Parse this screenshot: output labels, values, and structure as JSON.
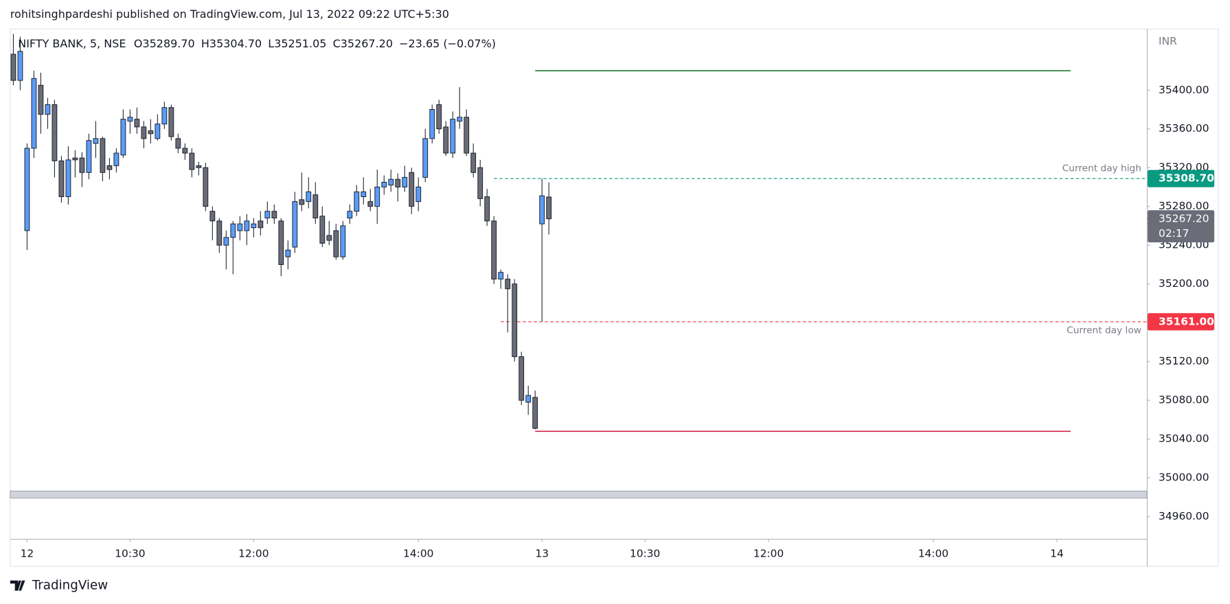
{
  "header": {
    "byline": "rohitsinghpardeshi published on TradingView.com, Jul 13, 2022 09:22 UTC+5:30"
  },
  "footer": {
    "brand": "TradingView"
  },
  "chart_data": {
    "type": "candlestick",
    "legend": {
      "symbol": "NIFTY BANK, 5, NSE",
      "items": [
        {
          "key": "O",
          "value": "35289.70"
        },
        {
          "key": "H",
          "value": "35304.70"
        },
        {
          "key": "L",
          "value": "35251.05"
        },
        {
          "key": "C",
          "value": "35267.20"
        }
      ],
      "change": "−23.65 (−0.07%)"
    },
    "currency": "INR",
    "up_color": "#5b9cf6",
    "down_color": "#6a6d78",
    "open": [
      35437,
      35410,
      35255,
      35340,
      35405,
      35375,
      35385,
      35327,
      35290,
      35330,
      35330,
      35315,
      35345,
      35350,
      35322,
      35322,
      35333,
      35368,
      35370,
      35362,
      35358,
      35350,
      35365,
      35382,
      35350,
      35340,
      35335,
      35322,
      35320,
      35275,
      35265,
      35240,
      35248,
      35255,
      35255,
      35258,
      35265,
      35268,
      35275,
      35265,
      35228,
      35238,
      35287,
      35285,
      35292,
      35270,
      35250,
      35255,
      35228,
      35268,
      35275,
      35290,
      35285,
      35280,
      35300,
      35302,
      35308,
      35300,
      35315,
      35285,
      35310,
      35350,
      35385,
      35362,
      35335,
      35368,
      35372,
      35335,
      35320,
      35290,
      35265,
      35205,
      35205,
      35200,
      35125,
      35078,
      35083,
      35262,
      35289.7
    ],
    "high": [
      35458,
      35455,
      35345,
      35420,
      35418,
      35392,
      35390,
      35332,
      35342,
      35338,
      35336,
      35355,
      35368,
      35352,
      35330,
      35340,
      35380,
      35380,
      35382,
      35368,
      35370,
      35375,
      35388,
      35385,
      35355,
      35345,
      35340,
      35326,
      35325,
      35280,
      35268,
      35255,
      35265,
      35270,
      35272,
      35268,
      35275,
      35285,
      35282,
      35268,
      35245,
      35295,
      35315,
      35310,
      35305,
      35280,
      35265,
      35262,
      35265,
      35282,
      35302,
      35310,
      35298,
      35318,
      35312,
      35318,
      35314,
      35322,
      35320,
      35310,
      35360,
      35385,
      35390,
      35368,
      35378,
      35403,
      35380,
      35345,
      35328,
      35298,
      35270,
      35215,
      35210,
      35205,
      35130,
      35095,
      35090,
      35308.7,
      35304.7
    ],
    "low": [
      35405,
      35400,
      35235,
      35330,
      35355,
      35360,
      35310,
      35284,
      35282,
      35310,
      35300,
      35308,
      35330,
      35306,
      35308,
      35315,
      35330,
      35355,
      35355,
      35340,
      35345,
      35348,
      35360,
      35348,
      35335,
      35328,
      35310,
      35312,
      35275,
      35245,
      35232,
      35215,
      35210,
      35245,
      35240,
      35248,
      35250,
      35262,
      35262,
      35208,
      35215,
      35232,
      35275,
      35278,
      35262,
      35238,
      35240,
      35225,
      35225,
      35262,
      35270,
      35282,
      35275,
      35262,
      35292,
      35295,
      35285,
      35295,
      35272,
      35275,
      35305,
      35345,
      35355,
      35332,
      35330,
      35360,
      35332,
      35310,
      35280,
      35260,
      35200,
      35195,
      35150,
      35120,
      35075,
      35065,
      35050,
      35161,
      35251.05
    ],
    "close": [
      35410,
      35440,
      35340,
      35412,
      35375,
      35385,
      35327,
      35290,
      35328,
      35328,
      35315,
      35348,
      35350,
      35315,
      35318,
      35335,
      35370,
      35372,
      35362,
      35350,
      35355,
      35365,
      35382,
      35352,
      35340,
      35335,
      35318,
      35320,
      35280,
      35265,
      35240,
      35248,
      35262,
      35262,
      35265,
      35262,
      35258,
      35275,
      35268,
      35220,
      35235,
      35285,
      35282,
      35295,
      35268,
      35242,
      35245,
      35228,
      35260,
      35275,
      35295,
      35295,
      35280,
      35300,
      35305,
      35308,
      35300,
      35310,
      35280,
      35300,
      35350,
      35380,
      35360,
      35335,
      35370,
      35372,
      35335,
      35315,
      35288,
      35265,
      35205,
      35212,
      35195,
      35125,
      35080,
      35085,
      35051,
      35291,
      35267.2
    ],
    "xlim": [
      -0.46,
      165.1
    ],
    "xticks": [
      {
        "value": 2,
        "label": "12"
      },
      {
        "value": 17,
        "label": "10:30"
      },
      {
        "value": 35,
        "label": "12:00"
      },
      {
        "value": 59,
        "label": "14:00"
      },
      {
        "value": 77,
        "label": "13"
      },
      {
        "value": 92,
        "label": "10:30"
      },
      {
        "value": 110,
        "label": "12:00"
      },
      {
        "value": 134,
        "label": "14:00"
      },
      {
        "value": 152,
        "label": "14"
      }
    ],
    "ylim": [
      34937,
      35463
    ],
    "yticks": [
      {
        "value": 34960,
        "label": "34960.00"
      },
      {
        "value": 35000,
        "label": "35000.00"
      },
      {
        "value": 35040,
        "label": "35040.00"
      },
      {
        "value": 35080,
        "label": "35080.00"
      },
      {
        "value": 35120,
        "label": "35120.00"
      },
      {
        "value": 35160,
        "label": "35160.00"
      },
      {
        "value": 35200,
        "label": "35200.00"
      },
      {
        "value": 35240,
        "label": "35240.00"
      },
      {
        "value": 35280,
        "label": "35280.00"
      },
      {
        "value": 35320,
        "label": "35320.00"
      },
      {
        "value": 35360,
        "label": "35360.00"
      },
      {
        "value": 35400,
        "label": "35400.00"
      }
    ],
    "grid": false,
    "levels": [
      {
        "value": 35420,
        "color": "#1e7b34",
        "start": 76,
        "end": 154,
        "style": "solid"
      },
      {
        "value": 35048,
        "color": "#d0103a",
        "start": 76,
        "end": 154,
        "style": "solid"
      },
      {
        "value": 35308.7,
        "name": "Current day high",
        "value_label": "35308.70",
        "color": "#089981",
        "start": 70,
        "style": "dashed"
      },
      {
        "value": 35161,
        "name": "Current day low",
        "value_label": "35161.00",
        "color": "#f23645",
        "start": 71,
        "style": "dashed"
      }
    ],
    "last_price": {
      "value": 35267.2,
      "value_label": "35267.20",
      "countdown": "02:17",
      "color": "#6a6d78"
    }
  }
}
